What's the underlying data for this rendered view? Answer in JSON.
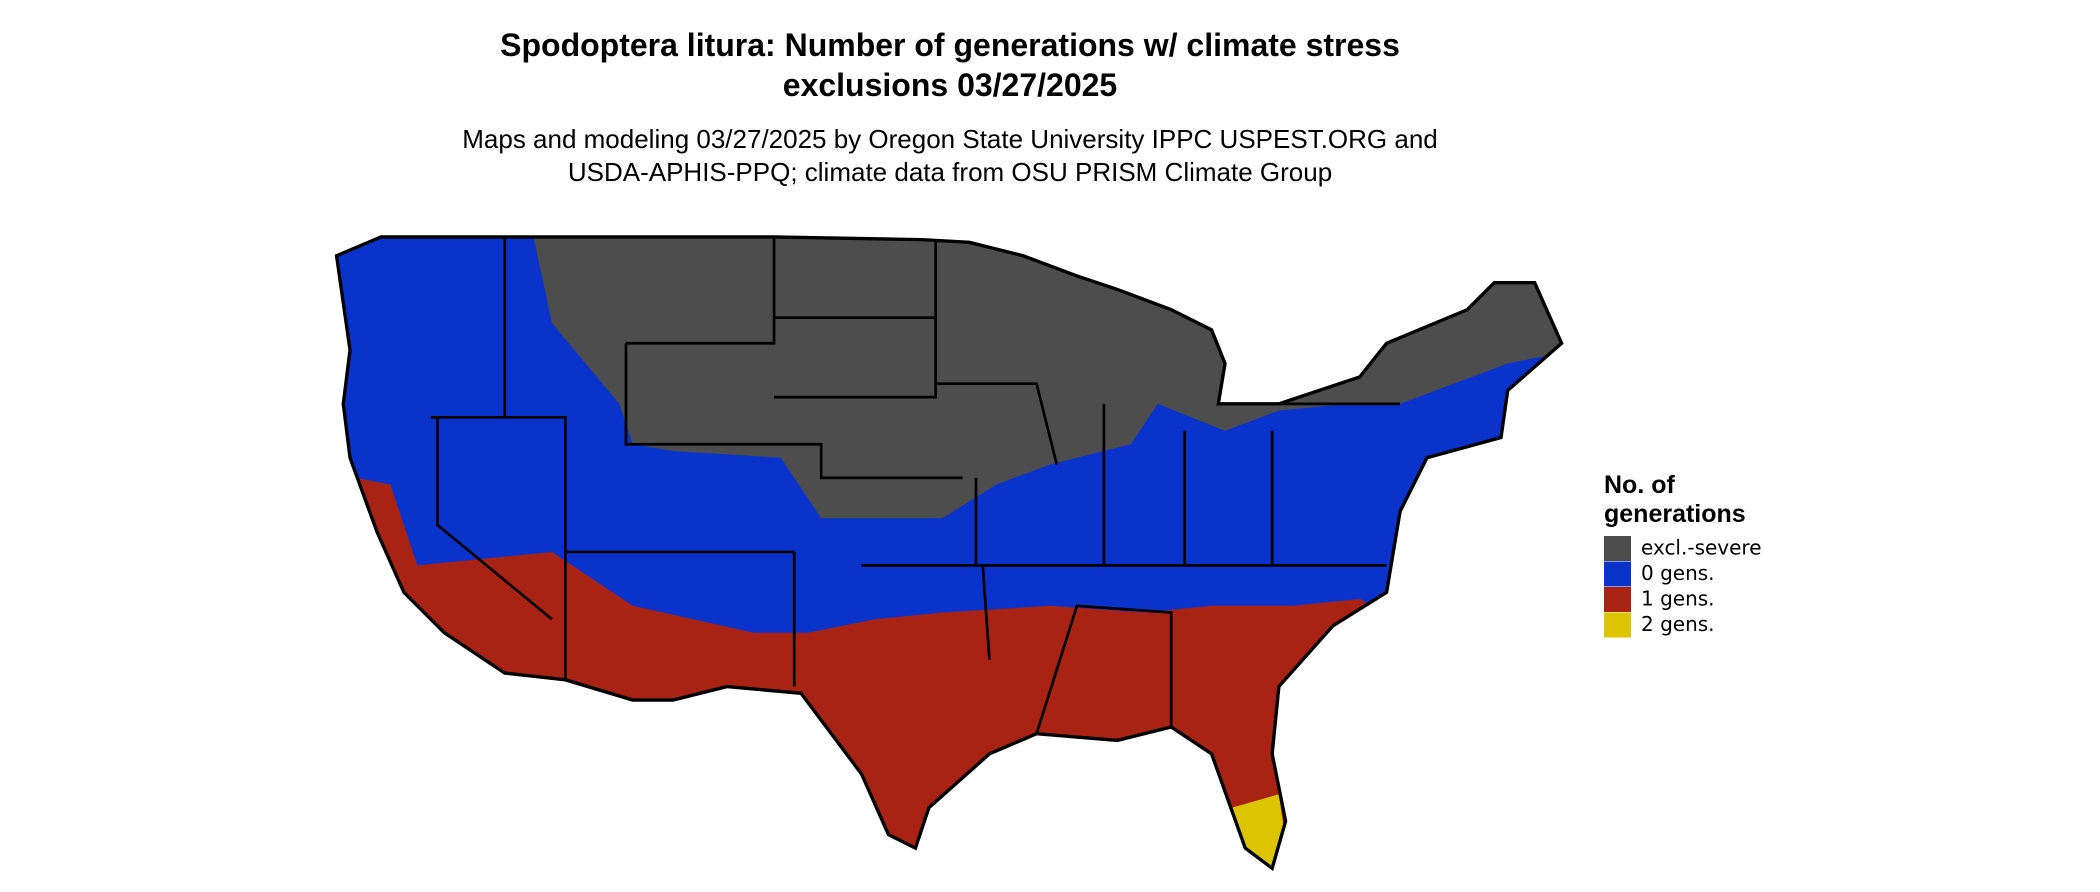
{
  "title": [
    "Spodoptera litura: Number of generations w/ climate stress",
    "exclusions 03/27/2025"
  ],
  "subtitle": [
    "Maps and modeling 03/27/2025 by Oregon State University IPPC USPEST.ORG and",
    "USDA-APHIS-PPQ; climate data from OSU PRISM Climate Group"
  ],
  "legend": {
    "title": [
      "No. of",
      "generations"
    ],
    "items": [
      {
        "label": "excl.-severe",
        "color": "#4d4d4d"
      },
      {
        "label": "0 gens.",
        "color": "#0a33cc"
      },
      {
        "label": "1 gens.",
        "color": "#a82314"
      },
      {
        "label": "2 gens.",
        "color": "#dcc400"
      }
    ]
  }
}
